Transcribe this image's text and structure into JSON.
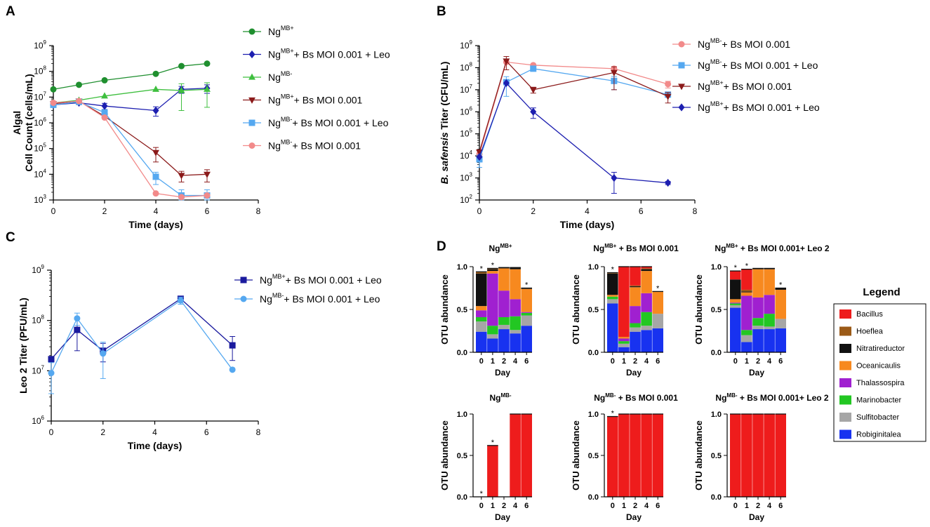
{
  "colors": {
    "ng_mbp": "#1f8f2f",
    "ng_mbp_bs_leo": "#1d1fb0",
    "ng_mbm": "#3fbf3f",
    "ng_mbp_bs": "#8b1a1a",
    "ng_mbm_bs_leo": "#55a8f0",
    "ng_mbm_bs": "#f28a8a",
    "c_mbp": "#1a1a9e",
    "c_mbm": "#55a8f0"
  },
  "chart_data": [
    {
      "panel": "A",
      "type": "line",
      "xlabel": "Time (days)",
      "ylabel_line1": "Algal",
      "ylabel_line2": "Cell Count (cells/mL)",
      "yscale": "log10",
      "xlim": [
        0,
        8
      ],
      "ylim_exp": [
        3,
        9
      ],
      "xticks": [
        "0",
        "2",
        "4",
        "6",
        "8"
      ],
      "yticks_exp": [
        "3",
        "4",
        "5",
        "6",
        "7",
        "8",
        "9"
      ],
      "legend_location": "right",
      "series": [
        {
          "key": "ng_mbp",
          "label_main": "Ng",
          "label_sup": "MB+",
          "label_rest": "",
          "marker": "circle",
          "colorKey": "ng_mbp",
          "x": [
            0,
            1,
            2,
            4,
            5,
            6
          ],
          "y": [
            20000000.0,
            30000000.0,
            45000000.0,
            80000000.0,
            160000000.0,
            200000000.0
          ],
          "err": [
            0,
            0,
            0,
            0,
            0,
            0
          ]
        },
        {
          "key": "ng_mbp_bs_leo",
          "label_main": "Ng",
          "label_sup": "MB+",
          "label_rest": "+ Bs MOI 0.001 + Leo",
          "marker": "diamond",
          "colorKey": "ng_mbp_bs_leo",
          "x": [
            0,
            1,
            2,
            4,
            5,
            6
          ],
          "y": [
            5000000.0,
            6000000.0,
            4500000.0,
            3000000.0,
            20000000.0,
            22000000.0
          ],
          "err": [
            0,
            0,
            1200000.0,
            1200000.0,
            6000000.0,
            8000000.0
          ]
        },
        {
          "key": "ng_mbm",
          "label_main": "Ng",
          "label_sup": "MB-",
          "label_rest": "",
          "marker": "triangle",
          "colorKey": "ng_mbm",
          "x": [
            0,
            1,
            2,
            4,
            5,
            6
          ],
          "y": [
            6000000.0,
            7500000.0,
            11000000.0,
            20000000.0,
            18000000.0,
            20000000.0
          ],
          "err": [
            0,
            0,
            0,
            0,
            15000000.0,
            16000000.0
          ]
        },
        {
          "key": "ng_mbp_bs",
          "label_main": "Ng",
          "label_sup": "MB+",
          "label_rest": "+ Bs MOI 0.001",
          "marker": "triangle-down",
          "colorKey": "ng_mbp_bs",
          "x": [
            0,
            1,
            2,
            4,
            5,
            6
          ],
          "y": [
            5500000.0,
            7000000.0,
            1800000.0,
            70000.0,
            9000.0,
            10000.0
          ],
          "err": [
            0,
            0,
            0,
            40000.0,
            4000.0,
            5000.0
          ]
        },
        {
          "key": "ng_mbm_bs_leo",
          "label_main": "Ng",
          "label_sup": "MB-",
          "label_rest": "+ Bs MOI 0.001 + Leo",
          "marker": "square",
          "colorKey": "ng_mbm_bs_leo",
          "x": [
            0,
            1,
            2,
            4,
            5,
            6
          ],
          "y": [
            5000000.0,
            6500000.0,
            2500000.0,
            8000.0,
            1500.0,
            1500.0
          ],
          "err": [
            0,
            0,
            0,
            4000.0,
            1000.0,
            1000.0
          ]
        },
        {
          "key": "ng_mbm_bs",
          "label_main": "Ng",
          "label_sup": "MB-",
          "label_rest": "+ Bs MOI 0.001",
          "marker": "circle",
          "colorKey": "ng_mbm_bs",
          "x": [
            0,
            1,
            2,
            4,
            5,
            6
          ],
          "y": [
            6000000.0,
            7000000.0,
            1600000.0,
            1800.0,
            1300.0,
            1500.0
          ],
          "err": [
            0,
            0,
            0,
            0,
            0,
            0
          ]
        }
      ]
    },
    {
      "panel": "B",
      "type": "line",
      "xlabel": "Time (days)",
      "ylabel_italic": "B. safensis",
      "ylabel_rest": " Titer (CFU/mL)",
      "yscale": "log10",
      "xlim": [
        0,
        8
      ],
      "ylim_exp": [
        2,
        9
      ],
      "xticks": [
        "0",
        "2",
        "4",
        "6",
        "8"
      ],
      "yticks_exp": [
        "2",
        "3",
        "4",
        "5",
        "6",
        "7",
        "8",
        "9"
      ],
      "legend_location": "right",
      "series": [
        {
          "key": "b_mbm_bs",
          "label_main": "Ng",
          "label_sup": "MB-",
          "label_rest": "+ Bs MOI 0.001",
          "marker": "circle",
          "colorKey": "ng_mbm_bs",
          "x": [
            0,
            1,
            2,
            5,
            7
          ],
          "y": [
            12000.0,
            180000000.0,
            130000000.0,
            90000000.0,
            18000000.0
          ],
          "err": [
            0,
            0,
            0,
            20000000.0,
            6000000.0
          ]
        },
        {
          "key": "b_mbm_bs_leo",
          "label_main": "Ng",
          "label_sup": "MB-",
          "label_rest": "+ Bs MOI 0.001 + Leo",
          "marker": "square",
          "colorKey": "ng_mbm_bs_leo",
          "x": [
            0,
            1,
            2,
            5,
            7
          ],
          "y": [
            7000.0,
            22000000.0,
            90000000.0,
            25000000.0,
            6000000.0
          ],
          "err": [
            4000.0,
            17000000.0,
            0,
            15000000.0,
            0
          ]
        },
        {
          "key": "b_mbp_bs",
          "label_main": "Ng",
          "label_sup": "MB+",
          "label_rest": "+ Bs MOI 0.001",
          "marker": "triangle-down",
          "colorKey": "ng_mbp_bs",
          "x": [
            0,
            1,
            2,
            5,
            7
          ],
          "y": [
            15000.0,
            200000000.0,
            10000000.0,
            60000000.0,
            5000000.0
          ],
          "err": [
            0,
            120000000.0,
            3000000.0,
            50000000.0,
            2500000.0
          ]
        },
        {
          "key": "b_mbp_bs_leo",
          "label_main": "Ng",
          "label_sup": "MB+",
          "label_rest": "+ Bs MOI 0.001 + Leo",
          "marker": "diamond",
          "colorKey": "ng_mbp_bs_leo",
          "x": [
            0,
            1,
            2,
            5,
            7
          ],
          "y": [
            9000.0,
            20000000.0,
            1000000.0,
            1000.0,
            600.0
          ],
          "err": [
            0,
            0,
            500000.0,
            800.0,
            100.0
          ]
        }
      ]
    },
    {
      "panel": "C",
      "type": "line",
      "xlabel": "Time (days)",
      "ylabel": "Leo 2 Titer (PFU/mL)",
      "yscale": "log10",
      "xlim": [
        0,
        8
      ],
      "ylim_exp": [
        6,
        9
      ],
      "xticks": [
        "0",
        "2",
        "4",
        "6",
        "8"
      ],
      "yticks_exp": [
        "6",
        "7",
        "8",
        "9"
      ],
      "legend_location": "right",
      "series": [
        {
          "key": "c_mbp",
          "label_main": "Ng",
          "label_sup": "MB+",
          "label_rest": "+ Bs MOI 0.001 + Leo",
          "marker": "square",
          "colorKey": "c_mbp",
          "x": [
            0,
            1,
            2,
            5,
            7
          ],
          "y": [
            17000000.0,
            65000000.0,
            25000000.0,
            270000000.0,
            32000000.0
          ],
          "err": [
            0,
            40000000.0,
            10000000.0,
            30000000.0,
            16000000.0
          ]
        },
        {
          "key": "c_mbm",
          "label_main": "Ng",
          "label_sup": "MB-",
          "label_rest": "+ Bs MOI 0.001 + Leo",
          "marker": "circle",
          "colorKey": "c_mbm",
          "x": [
            0,
            1,
            2,
            5,
            7
          ],
          "y": [
            9000000.0,
            110000000.0,
            22000000.0,
            250000000.0,
            10500000.0
          ],
          "err": [
            5500000.0,
            30000000.0,
            15000000.0,
            40000000.0,
            0
          ]
        }
      ]
    },
    {
      "panel": "D",
      "type": "stacked-bar",
      "ylabel": "OTU abundance",
      "xlabel": "Day",
      "categories": [
        "0",
        "1",
        "2",
        "4",
        "6"
      ],
      "yticks": [
        "0.0",
        "0.5",
        "1.0"
      ],
      "ylim": [
        0,
        1
      ],
      "legend_title": "Legend",
      "taxa": [
        {
          "name": "Bacillus",
          "color": "#ee1c1c"
        },
        {
          "name": "Hoeflea",
          "color": "#9b5a17"
        },
        {
          "name": "Nitratireductor",
          "color": "#111111"
        },
        {
          "name": "Oceanicaulis",
          "color": "#f7891f"
        },
        {
          "name": "Thalassospira",
          "color": "#a020d0"
        },
        {
          "name": "Marinobacter",
          "color": "#22c722"
        },
        {
          "name": "Sulfitobacter",
          "color": "#a6a6a6"
        },
        {
          "name": "Robiginitalea",
          "color": "#1832f0"
        }
      ],
      "subpanels": [
        {
          "title_main": "Ng",
          "title_sup": "MB+",
          "title_rest": "",
          "stars": [
            "*",
            "*",
            "",
            "",
            "*"
          ],
          "bars": [
            {
              "Robiginitalea": 0.24,
              "Sulfitobacter": 0.12,
              "Marinobacter": 0.05,
              "Thalassospira": 0.08,
              "Oceanicaulis": 0.05,
              "Nitratireductor": 0.38,
              "Hoeflea": 0.02,
              "Bacillus": 0.0
            },
            {
              "Robiginitalea": 0.16,
              "Sulfitobacter": 0.05,
              "Marinobacter": 0.1,
              "Thalassospira": 0.61,
              "Oceanicaulis": 0.03,
              "Nitratireductor": 0.02,
              "Hoeflea": 0.01,
              "Bacillus": 0.0
            },
            {
              "Robiginitalea": 0.27,
              "Sulfitobacter": 0.05,
              "Marinobacter": 0.09,
              "Thalassospira": 0.31,
              "Oceanicaulis": 0.26,
              "Nitratireductor": 0.01,
              "Hoeflea": 0.0,
              "Bacillus": 0.0
            },
            {
              "Robiginitalea": 0.22,
              "Sulfitobacter": 0.04,
              "Marinobacter": 0.16,
              "Thalassospira": 0.2,
              "Oceanicaulis": 0.35,
              "Nitratireductor": 0.02,
              "Hoeflea": 0.0,
              "Bacillus": 0.0
            },
            {
              "Robiginitalea": 0.31,
              "Sulfitobacter": 0.12,
              "Marinobacter": 0.03,
              "Thalassospira": 0.01,
              "Oceanicaulis": 0.27,
              "Nitratireductor": 0.01,
              "Hoeflea": 0.0,
              "Bacillus": 0.0
            }
          ]
        },
        {
          "title_main": "Ng",
          "title_sup": "MB+",
          "title_rest": " + Bs MOI 0.001",
          "stars": [
            "*",
            "",
            "",
            "",
            "*"
          ],
          "bars": [
            {
              "Robiginitalea": 0.57,
              "Sulfitobacter": 0.05,
              "Marinobacter": 0.03,
              "Thalassospira": 0.0,
              "Oceanicaulis": 0.02,
              "Nitratireductor": 0.25,
              "Hoeflea": 0.01,
              "Bacillus": 0.0
            },
            {
              "Robiginitalea": 0.06,
              "Sulfitobacter": 0.04,
              "Marinobacter": 0.03,
              "Thalassospira": 0.03,
              "Oceanicaulis": 0.02,
              "Nitratireductor": 0.0,
              "Hoeflea": 0.0,
              "Bacillus": 0.82
            },
            {
              "Robiginitalea": 0.24,
              "Sulfitobacter": 0.05,
              "Marinobacter": 0.05,
              "Thalassospira": 0.2,
              "Oceanicaulis": 0.22,
              "Nitratireductor": 0.01,
              "Hoeflea": 0.01,
              "Bacillus": 0.22
            },
            {
              "Robiginitalea": 0.26,
              "Sulfitobacter": 0.05,
              "Marinobacter": 0.16,
              "Thalassospira": 0.22,
              "Oceanicaulis": 0.26,
              "Nitratireductor": 0.02,
              "Hoeflea": 0.01,
              "Bacillus": 0.02
            },
            {
              "Robiginitalea": 0.28,
              "Sulfitobacter": 0.17,
              "Marinobacter": 0.0,
              "Thalassospira": 0.0,
              "Oceanicaulis": 0.26,
              "Nitratireductor": 0.0,
              "Hoeflea": 0.0,
              "Bacillus": 0.0
            }
          ]
        },
        {
          "title_main": "Ng",
          "title_sup": "MB+",
          "title_rest": " + Bs MOI 0.001+ Leo 2",
          "stars": [
            "*",
            "*",
            "",
            "",
            "*"
          ],
          "bars": [
            {
              "Robiginitalea": 0.52,
              "Sulfitobacter": 0.03,
              "Marinobacter": 0.02,
              "Thalassospira": 0.01,
              "Oceanicaulis": 0.04,
              "Nitratireductor": 0.23,
              "Hoeflea": 0.0,
              "Bacillus": 0.1
            },
            {
              "Robiginitalea": 0.12,
              "Sulfitobacter": 0.08,
              "Marinobacter": 0.06,
              "Thalassospira": 0.4,
              "Oceanicaulis": 0.04,
              "Nitratireductor": 0.01,
              "Hoeflea": 0.02,
              "Bacillus": 0.24
            },
            {
              "Robiginitalea": 0.27,
              "Sulfitobacter": 0.04,
              "Marinobacter": 0.09,
              "Thalassospira": 0.24,
              "Oceanicaulis": 0.33,
              "Nitratireductor": 0.01,
              "Hoeflea": 0.0,
              "Bacillus": 0.0
            },
            {
              "Robiginitalea": 0.27,
              "Sulfitobacter": 0.03,
              "Marinobacter": 0.15,
              "Thalassospira": 0.22,
              "Oceanicaulis": 0.3,
              "Nitratireductor": 0.01,
              "Hoeflea": 0.0,
              "Bacillus": 0.0
            },
            {
              "Robiginitalea": 0.28,
              "Sulfitobacter": 0.11,
              "Marinobacter": 0.0,
              "Thalassospira": 0.0,
              "Oceanicaulis": 0.34,
              "Nitratireductor": 0.02,
              "Hoeflea": 0.0,
              "Bacillus": 0.0
            }
          ]
        },
        {
          "title_main": "Ng",
          "title_sup": "MB-",
          "title_rest": "",
          "stars": [
            "*",
            "*",
            "",
            "",
            ""
          ],
          "bars": [
            {
              "Bacillus": 0.0
            },
            {
              "Bacillus": 0.62
            },
            {
              "Bacillus": 0.0
            },
            {
              "Bacillus": 1.0
            },
            {
              "Bacillus": 1.0
            }
          ]
        },
        {
          "title_main": "Ng",
          "title_sup": "MB-",
          "title_rest": " + Bs MOI 0.001",
          "stars": [
            "*",
            "",
            "",
            "",
            ""
          ],
          "bars": [
            {
              "Bacillus": 0.97
            },
            {
              "Bacillus": 1.0
            },
            {
              "Bacillus": 1.0
            },
            {
              "Bacillus": 1.0
            },
            {
              "Bacillus": 1.0
            }
          ]
        },
        {
          "title_main": "Ng",
          "title_sup": "MB-",
          "title_rest": " + Bs MOI 0.001+ Leo 2",
          "stars": [
            "",
            "",
            "",
            "",
            ""
          ],
          "bars": [
            {
              "Bacillus": 1.0
            },
            {
              "Bacillus": 1.0
            },
            {
              "Bacillus": 1.0
            },
            {
              "Bacillus": 1.0
            },
            {
              "Bacillus": 1.0
            }
          ]
        }
      ]
    }
  ]
}
